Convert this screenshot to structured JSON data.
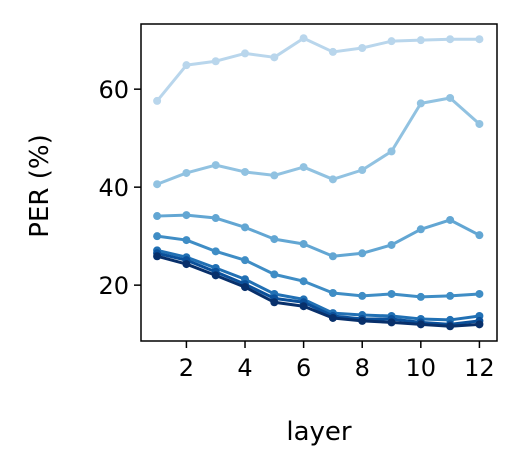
{
  "chart_data": {
    "type": "line",
    "x_label": "layer",
    "y_label": "PER (%)",
    "x": [
      1,
      2,
      3,
      4,
      5,
      6,
      7,
      8,
      9,
      10,
      11,
      12
    ],
    "xlim": [
      0.45,
      12.6
    ],
    "xticks": [
      2,
      4,
      6,
      8,
      10,
      12
    ],
    "ylim": [
      8.6,
      73.3
    ],
    "yticks": [
      20,
      40,
      60
    ],
    "grid": false,
    "series": [
      {
        "color": "#b9d6ec",
        "values": [
          57.6,
          64.9,
          65.7,
          67.3,
          66.5,
          70.4,
          67.6,
          68.4,
          69.8,
          70.0,
          70.2,
          70.2
        ]
      },
      {
        "color": "#91c2e1",
        "values": [
          40.6,
          42.9,
          44.5,
          43.1,
          42.4,
          44.1,
          41.6,
          43.5,
          47.3,
          57.1,
          58.2,
          52.9
        ]
      },
      {
        "color": "#62a6d3",
        "values": [
          34.1,
          34.3,
          33.7,
          31.8,
          29.4,
          28.4,
          25.9,
          26.5,
          28.2,
          31.4,
          33.3,
          30.2
        ]
      },
      {
        "color": "#3f8dc5",
        "values": [
          30.0,
          29.2,
          26.9,
          25.1,
          22.2,
          20.8,
          18.4,
          17.8,
          18.2,
          17.6,
          17.8,
          18.2
        ]
      },
      {
        "color": "#2170b4",
        "values": [
          27.1,
          25.7,
          23.5,
          21.2,
          18.2,
          17.1,
          14.3,
          13.9,
          13.7,
          13.1,
          12.9,
          13.7
        ]
      },
      {
        "color": "#0b509a",
        "values": [
          26.5,
          25.1,
          22.7,
          20.2,
          17.3,
          16.5,
          13.7,
          13.1,
          13.1,
          12.4,
          12.0,
          12.7
        ]
      },
      {
        "color": "#08306b",
        "values": [
          25.9,
          24.3,
          22.0,
          19.6,
          16.5,
          15.7,
          13.3,
          12.7,
          12.4,
          12.0,
          11.6,
          12.0
        ]
      }
    ]
  }
}
